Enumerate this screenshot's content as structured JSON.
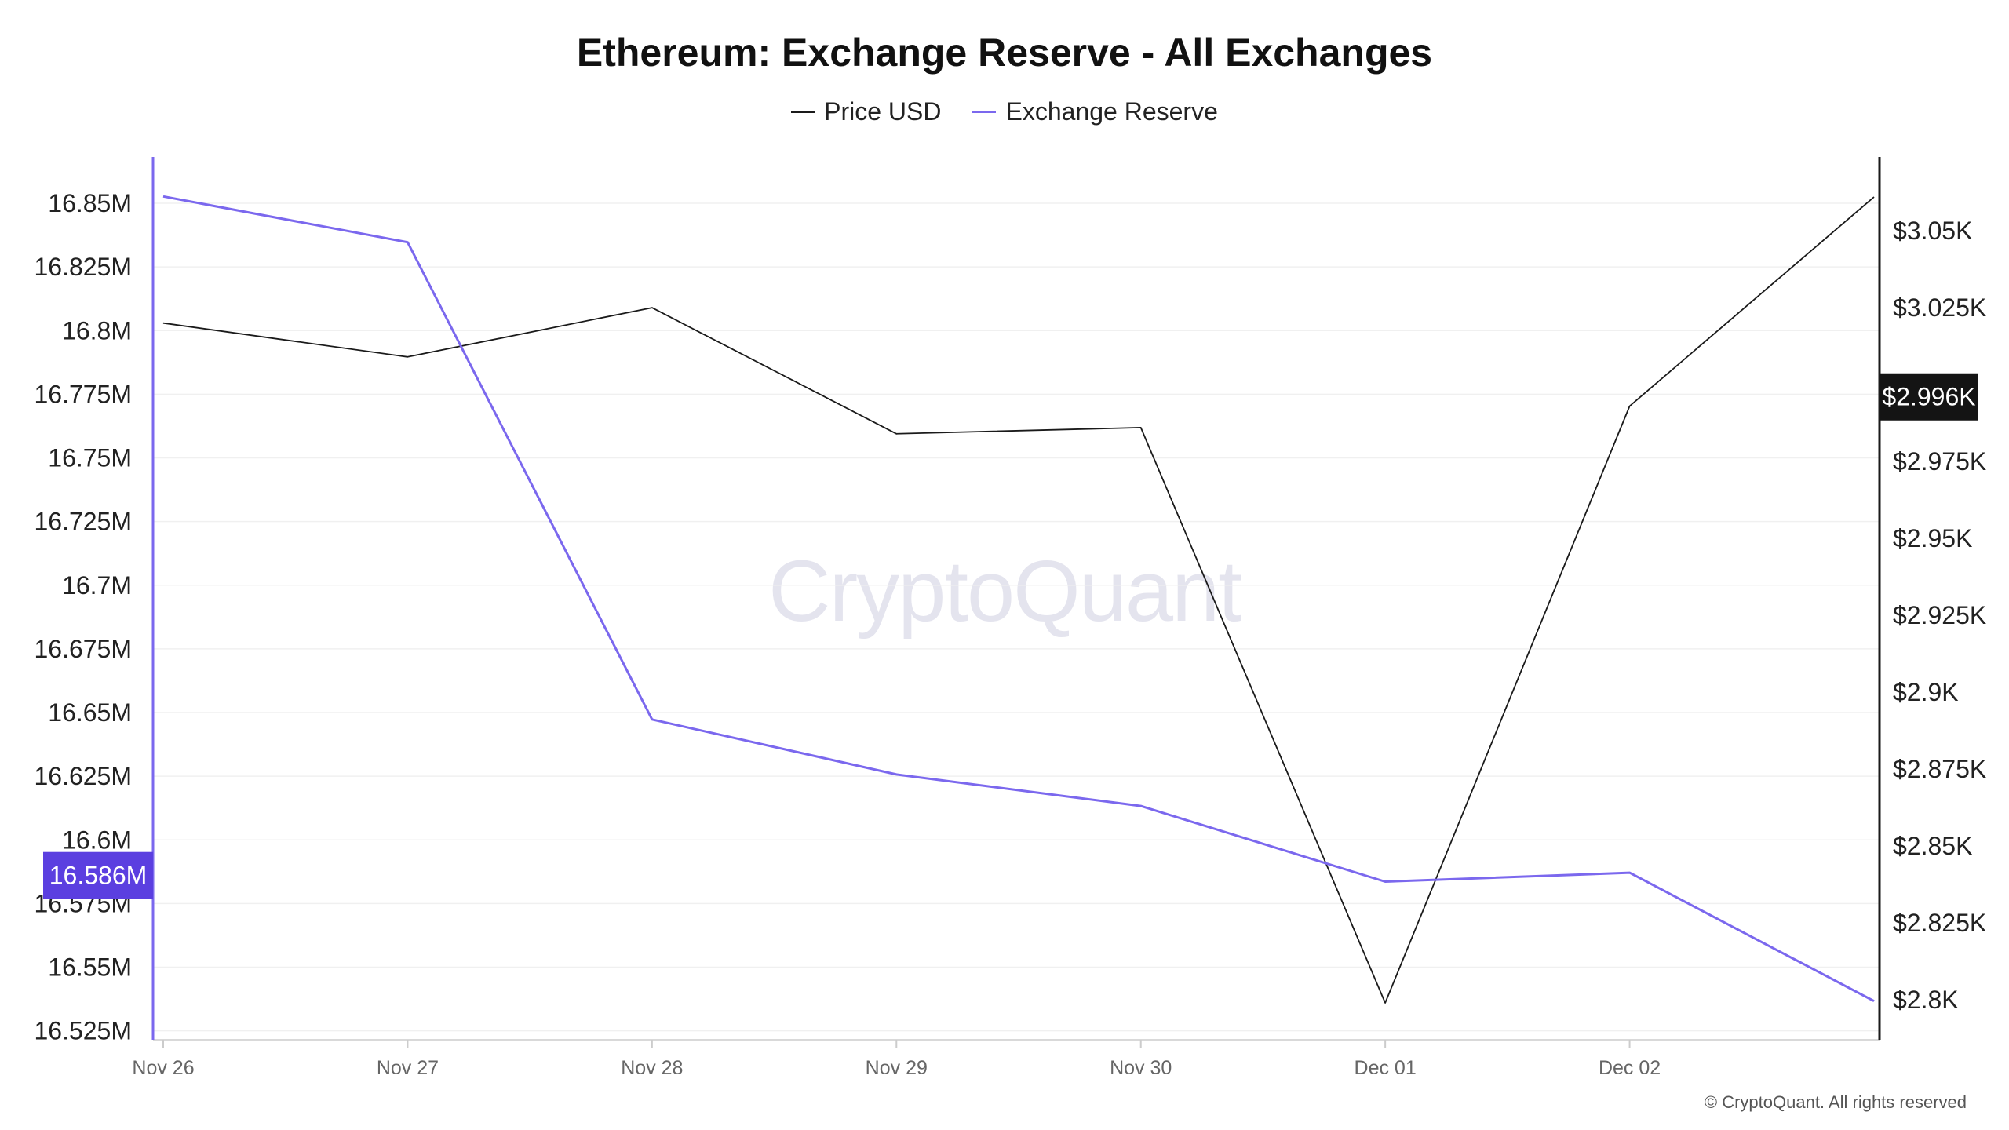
{
  "chart_data": {
    "type": "line",
    "title": "Ethereum: Exchange Reserve - All Exchanges",
    "categories": [
      "Nov 26",
      "Nov 27",
      "Nov 28",
      "Nov 29",
      "Nov 30",
      "Dec 01",
      "Dec 02",
      ""
    ],
    "series": [
      {
        "name": "Price USD",
        "axis": "right",
        "color": "#1a1a1a",
        "values": [
          3020,
          3009,
          3025,
          2984,
          2986,
          2799,
          2993,
          3061
        ]
      },
      {
        "name": "Exchange Reserve",
        "axis": "left",
        "color": "#7b68ee",
        "values": [
          16.8527,
          16.8347,
          16.6473,
          16.6257,
          16.6133,
          16.5836,
          16.5871,
          16.5367
        ]
      }
    ],
    "left_axis": {
      "ticks": [
        "16.525M",
        "16.55M",
        "16.575M",
        "16.6M",
        "16.625M",
        "16.65M",
        "16.675M",
        "16.7M",
        "16.725M",
        "16.75M",
        "16.775M",
        "16.8M",
        "16.825M",
        "16.85M"
      ],
      "tick_values": [
        16.525,
        16.55,
        16.575,
        16.6,
        16.625,
        16.65,
        16.675,
        16.7,
        16.725,
        16.75,
        16.775,
        16.8,
        16.825,
        16.85
      ],
      "range": [
        16.5215,
        16.8682
      ],
      "color": "#7b68ee",
      "current_label": "16.586M",
      "current_value": 16.586
    },
    "right_axis": {
      "ticks": [
        "$2.8K",
        "$2.825K",
        "$2.85K",
        "$2.875K",
        "$2.9K",
        "$2.925K",
        "$2.95K",
        "$2.975K",
        "$3.025K",
        "$3.05K"
      ],
      "tick_values": [
        2800,
        2825,
        2850,
        2875,
        2900,
        2925,
        2950,
        2975,
        3025,
        3050
      ],
      "range": [
        2787,
        3074
      ],
      "color": "#1a1a1a",
      "current_label": "$2.996K",
      "current_value": 2996
    },
    "grid": true,
    "legend_position": "top-center"
  },
  "legend": {
    "price_label": "Price USD",
    "reserve_label": "Exchange Reserve"
  },
  "watermark": "CryptoQuant",
  "copyright": "© CryptoQuant. All rights reserved"
}
